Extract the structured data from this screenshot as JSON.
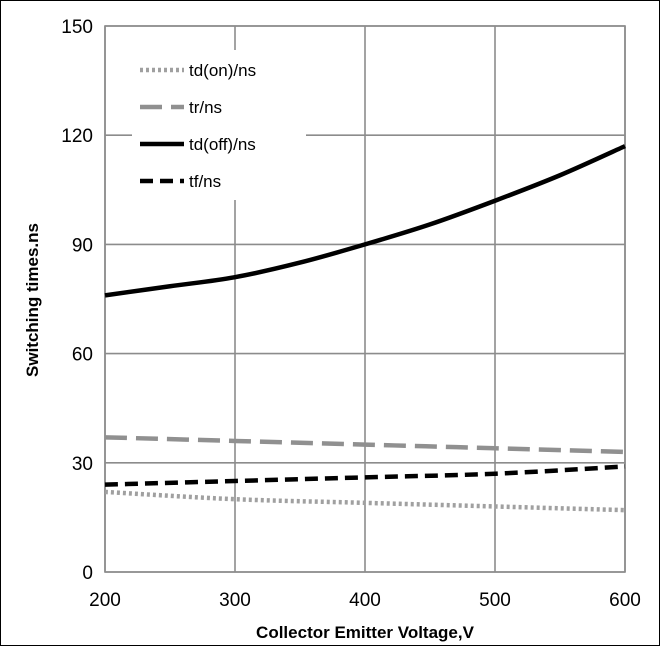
{
  "chart_data": {
    "type": "line",
    "title": "",
    "xlabel": "Collector Emitter Voltage,V",
    "ylabel": "Switching times.ns",
    "xlim": [
      200,
      600
    ],
    "ylim": [
      0,
      150
    ],
    "xticks": [
      200,
      300,
      400,
      500,
      600
    ],
    "yticks": [
      0,
      30,
      60,
      90,
      120,
      150
    ],
    "grid": true,
    "legend_position": "top-left",
    "series": [
      {
        "name": "td(on)/ns",
        "color": "#a0a0a0",
        "dash": "dotted",
        "x": [
          200,
          300,
          400,
          500,
          600
        ],
        "y": [
          22,
          20,
          19,
          18,
          17
        ]
      },
      {
        "name": "tr/ns",
        "color": "#909090",
        "dash": "dashed-long",
        "x": [
          200,
          300,
          400,
          500,
          600
        ],
        "y": [
          37,
          36,
          35,
          34,
          33
        ]
      },
      {
        "name": "td(off)/ns",
        "color": "#000000",
        "dash": "solid",
        "x": [
          200,
          250,
          300,
          350,
          400,
          450,
          500,
          550,
          600
        ],
        "y": [
          76,
          78.5,
          81,
          85,
          90,
          95.5,
          102,
          109,
          117
        ]
      },
      {
        "name": "tf/ns",
        "color": "#000000",
        "dash": "dashed",
        "x": [
          200,
          300,
          400,
          500,
          600
        ],
        "y": [
          24,
          25,
          26,
          27,
          29
        ]
      }
    ]
  }
}
